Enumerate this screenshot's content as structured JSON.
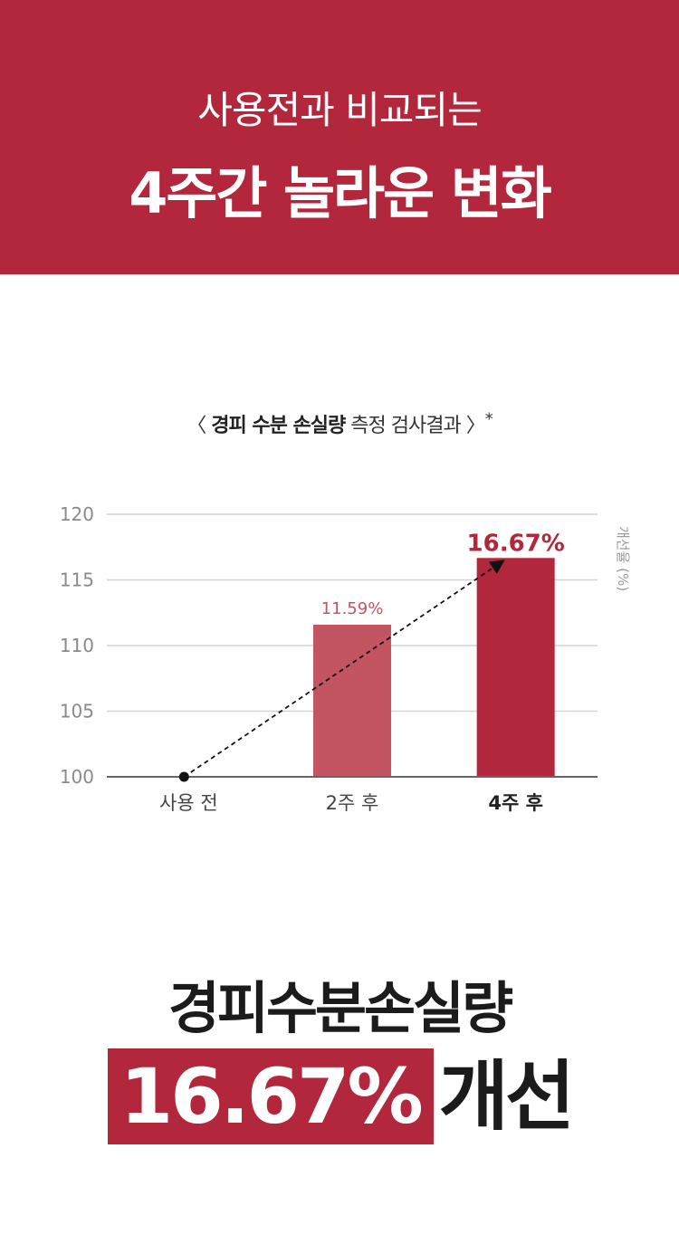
{
  "header": {
    "line1": "사용전과 비교되는",
    "line2": "4주간 놀라운 변화"
  },
  "chart_title": {
    "open": "〈 ",
    "bold": "경피 수분 손실량",
    "rest": " 측정 검사결과 〉",
    "mark": "*"
  },
  "chart_data": {
    "type": "bar",
    "categories": [
      "사용 전",
      "2주 후",
      "4주 후"
    ],
    "values": [
      100,
      111.59,
      116.67
    ],
    "value_labels": [
      "",
      "11.59%",
      "16.67%"
    ],
    "ylim": [
      100,
      120
    ],
    "yticks": [
      "100",
      "105",
      "110",
      "115",
      "120"
    ],
    "ylabel": "개선율 (%)",
    "grid": true,
    "colors": [
      "#b2273c",
      "#c35462",
      "#b2273c"
    ]
  },
  "summary": {
    "line1": "경피수분손실량",
    "percent": "16.67%",
    "word": "개선"
  }
}
